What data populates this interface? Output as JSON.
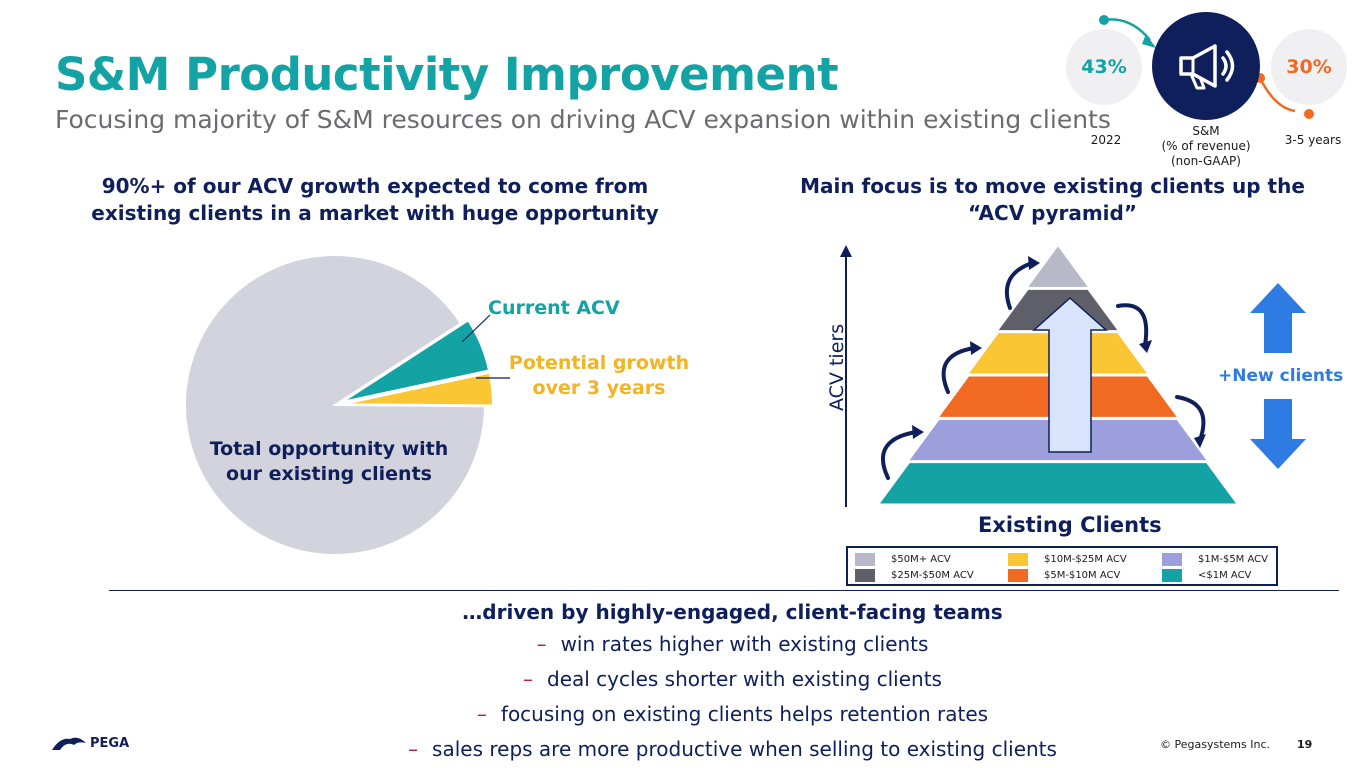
{
  "header": {
    "title": "S&M Productivity Improvement",
    "subtitle": "Focusing majority of S&M resources on driving ACV expansion within existing clients"
  },
  "kpi": {
    "left_value": "43%",
    "left_label": "2022",
    "center_label": "S&M\n(% of revenue)\n(non-GAAP)",
    "right_value": "30%",
    "right_label": "3-5 years",
    "icon": "megaphone-icon"
  },
  "left_panel": {
    "heading": "90%+ of our ACV growth expected to come from existing clients in a market with huge opportunity"
  },
  "right_panel": {
    "heading": "Main focus is to move existing clients up the “ACV pyramid”",
    "axis_label": "ACV tiers",
    "new_clients_label": "+New clients",
    "base_label": "Existing Clients"
  },
  "chart_data": {
    "type": "pie",
    "slices": [
      {
        "label": "Total opportunity with our existing clients",
        "value": 90.7,
        "color": "#d3d3de"
      },
      {
        "label": "Current ACV",
        "value": 5.8,
        "color": "#14a3a5"
      },
      {
        "label": "Potential growth over 3 years",
        "value": 3.5,
        "color": "#fbc633"
      }
    ]
  },
  "pyramid": {
    "tiers": [
      {
        "label": "$50M+ ACV",
        "color": "#b7b8c8"
      },
      {
        "label": "$25M-$50M ACV",
        "color": "#5f5f6a"
      },
      {
        "label": "$10M-$25M ACV",
        "color": "#fbc633"
      },
      {
        "label": "$5M-$10M ACV",
        "color": "#f26a22"
      },
      {
        "label": "$1M-$5M ACV",
        "color": "#9d9fdd"
      },
      {
        "label": "<$1M ACV",
        "color": "#14a3a5"
      }
    ]
  },
  "bottom": {
    "heading": "…driven by highly-engaged, client-facing teams",
    "dash": "–",
    "bullets": [
      "win rates higher with existing clients",
      "deal cycles shorter with existing clients",
      "focusing on existing clients helps retention rates",
      "sales reps are more productive when selling to existing clients"
    ]
  },
  "footer": {
    "logo_text": "PEGA",
    "copyright": "© Pegasystems Inc.",
    "page_number": "19"
  },
  "colors": {
    "navy": "#0e1f5b",
    "teal": "#14a3a5",
    "gold": "#f2b324",
    "orange": "#f26a22",
    "blue_arrow": "#2e7be3"
  }
}
